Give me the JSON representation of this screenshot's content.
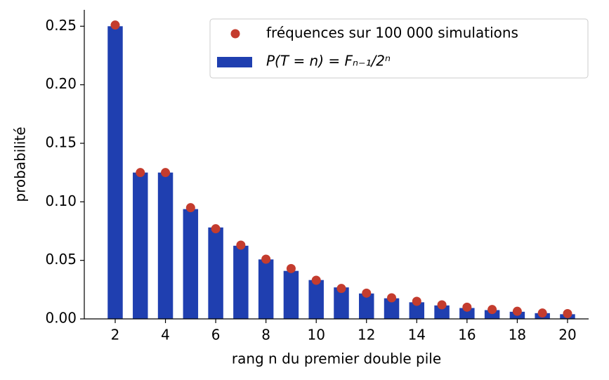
{
  "chart_data": {
    "type": "bar",
    "x": [
      2,
      3,
      4,
      5,
      6,
      7,
      8,
      9,
      10,
      11,
      12,
      13,
      14,
      15,
      16,
      17,
      18,
      19,
      20
    ],
    "series": [
      {
        "name": "P(T = n) = Fₙ₋₁/2ⁿ",
        "type": "bar",
        "color": "#1f3fb0",
        "values": [
          0.25,
          0.125,
          0.125,
          0.0938,
          0.0781,
          0.0625,
          0.0508,
          0.041,
          0.0332,
          0.0269,
          0.0217,
          0.0176,
          0.0142,
          0.0115,
          0.0093,
          0.0075,
          0.0061,
          0.0049,
          0.004
        ]
      },
      {
        "name": "fréquences sur 100 000 simulations",
        "type": "scatter",
        "color": "#c43c2e",
        "values": [
          0.251,
          0.125,
          0.125,
          0.095,
          0.077,
          0.063,
          0.051,
          0.043,
          0.033,
          0.026,
          0.022,
          0.018,
          0.015,
          0.012,
          0.01,
          0.008,
          0.0065,
          0.005,
          0.0045
        ]
      }
    ],
    "xlabel": "rang n du premier double pile",
    "ylabel": "probabilité",
    "xlim": [
      0.77,
      20.84
    ],
    "ylim": [
      0,
      0.264
    ],
    "xticks": [
      2,
      4,
      6,
      8,
      10,
      12,
      14,
      16,
      18,
      20
    ],
    "yticks": [
      {
        "value": 0,
        "label": "0.00"
      },
      {
        "value": 0.05,
        "label": "0.05"
      },
      {
        "value": 0.1,
        "label": "0.10"
      },
      {
        "value": 0.15,
        "label": "0.15"
      },
      {
        "value": 0.2,
        "label": "0.20"
      },
      {
        "value": 0.25,
        "label": "0.25"
      }
    ],
    "legend": "upper right"
  }
}
